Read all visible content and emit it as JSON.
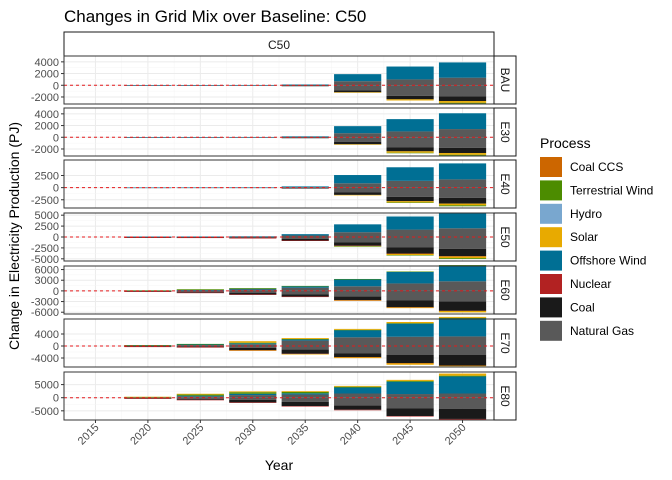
{
  "chart_data": {
    "type": "bar",
    "stacked": true,
    "title": "Changes in Grid Mix over Baseline: C50",
    "xlabel": "Year",
    "ylabel": "Change in Electricity Production (PJ)",
    "column_facet": "C50",
    "x": [
      "2015",
      "2020",
      "2025",
      "2030",
      "2035",
      "2040",
      "2045",
      "2050"
    ],
    "legend_title": "Process",
    "legend_position": "right",
    "baseline_line_color": "#e41a1c",
    "processes": [
      {
        "name": "Coal CCS",
        "color": "#cc6600"
      },
      {
        "name": "Terrestrial Wind",
        "color": "#4c8c00"
      },
      {
        "name": "Hydro",
        "color": "#79a7cf"
      },
      {
        "name": "Solar",
        "color": "#e8aa00"
      },
      {
        "name": "Offshore Wind",
        "color": "#006f94"
      },
      {
        "name": "Nuclear",
        "color": "#b22222"
      },
      {
        "name": "Coal",
        "color": "#1a1a1a"
      },
      {
        "name": "Natural Gas",
        "color": "#595959"
      }
    ],
    "panels": [
      {
        "label": "BAU",
        "ylim": [
          -3200,
          5000
        ],
        "yticks": [
          -2000,
          0,
          2000,
          4000
        ],
        "series": {
          "Natural Gas": [
            0,
            -30,
            -30,
            -50,
            -80,
            -900,
            -1800,
            -1900
          ],
          "Coal": [
            0,
            0,
            0,
            0,
            -40,
            -300,
            -600,
            -800
          ],
          "Nuclear": [
            0,
            0,
            0,
            0,
            0,
            0,
            0,
            0
          ],
          "Solar": [
            0,
            0,
            0,
            0,
            0,
            -50,
            -200,
            -300
          ],
          "Terrestrial Wind": [
            0,
            0,
            0,
            0,
            0,
            0,
            0,
            -100
          ],
          "Offshore Wind": [
            0,
            30,
            30,
            50,
            80,
            1200,
            2200,
            2600
          ],
          "Hydro": [
            0,
            0,
            0,
            0,
            0,
            0,
            0,
            0
          ],
          "Coal CCS": [
            0,
            0,
            0,
            0,
            0,
            0,
            0,
            0
          ],
          "Natural Gas (pos)": [
            0,
            0,
            0,
            0,
            50,
            700,
            1000,
            1300
          ]
        }
      },
      {
        "label": "E30",
        "ylim": [
          -3200,
          5000
        ],
        "yticks": [
          -2000,
          0,
          2000,
          4000
        ],
        "series": {
          "Natural Gas": [
            0,
            -20,
            -30,
            -50,
            -80,
            -800,
            -1700,
            -1800
          ],
          "Coal": [
            0,
            0,
            0,
            0,
            -40,
            -400,
            -700,
            -900
          ],
          "Nuclear": [
            0,
            0,
            0,
            0,
            0,
            0,
            0,
            0
          ],
          "Solar": [
            0,
            0,
            0,
            0,
            0,
            -50,
            -250,
            -300
          ],
          "Terrestrial Wind": [
            0,
            0,
            0,
            0,
            0,
            0,
            -50,
            -100
          ],
          "Offshore Wind": [
            0,
            20,
            30,
            50,
            100,
            1200,
            2100,
            2700
          ],
          "Hydro": [
            0,
            0,
            0,
            0,
            0,
            0,
            0,
            0
          ],
          "Coal CCS": [
            0,
            0,
            0,
            0,
            0,
            0,
            0,
            0
          ],
          "Natural Gas (pos)": [
            0,
            0,
            0,
            0,
            60,
            700,
            1000,
            1400
          ]
        }
      },
      {
        "label": "E40",
        "ylim": [
          -4200,
          5700
        ],
        "yticks": [
          -2500,
          0,
          2500
        ],
        "series": {
          "Natural Gas": [
            0,
            -20,
            -30,
            -50,
            -100,
            -1000,
            -1900,
            -2100
          ],
          "Coal": [
            0,
            0,
            0,
            0,
            -50,
            -500,
            -900,
            -1200
          ],
          "Nuclear": [
            0,
            0,
            0,
            0,
            0,
            0,
            0,
            0
          ],
          "Solar": [
            0,
            0,
            0,
            0,
            0,
            -50,
            -250,
            -350
          ],
          "Terrestrial Wind": [
            0,
            0,
            0,
            0,
            0,
            0,
            -100,
            -200
          ],
          "Offshore Wind": [
            0,
            20,
            30,
            50,
            150,
            1700,
            2800,
            3300
          ],
          "Hydro": [
            0,
            0,
            0,
            0,
            0,
            0,
            0,
            0
          ],
          "Coal CCS": [
            0,
            0,
            0,
            0,
            0,
            0,
            0,
            0
          ],
          "Natural Gas (pos)": [
            0,
            0,
            0,
            0,
            100,
            900,
            1400,
            1700
          ]
        }
      },
      {
        "label": "E50",
        "ylim": [
          -5500,
          5500
        ],
        "yticks": [
          -5000,
          -2500,
          0,
          2500,
          5000
        ],
        "series": {
          "Natural Gas": [
            0,
            -80,
            -100,
            -150,
            -400,
            -1200,
            -2400,
            -2700
          ],
          "Coal": [
            0,
            -20,
            -30,
            -80,
            -400,
            -800,
            -1400,
            -1700
          ],
          "Nuclear": [
            0,
            -30,
            -30,
            -30,
            -50,
            -50,
            -50,
            -50
          ],
          "Solar": [
            0,
            0,
            0,
            0,
            0,
            -50,
            -300,
            -400
          ],
          "Terrestrial Wind": [
            0,
            0,
            0,
            0,
            0,
            -20,
            -100,
            -200
          ],
          "Offshore Wind": [
            0,
            50,
            50,
            80,
            300,
            1800,
            3000,
            3600
          ],
          "Hydro": [
            0,
            0,
            0,
            0,
            0,
            0,
            0,
            0
          ],
          "Coal CCS": [
            0,
            0,
            0,
            0,
            0,
            0,
            0,
            0
          ],
          "Natural Gas (pos)": [
            0,
            50,
            60,
            80,
            350,
            1100,
            1700,
            2000
          ]
        }
      },
      {
        "label": "E60",
        "ylim": [
          -6500,
          7000
        ],
        "yticks": [
          -6000,
          -3000,
          0,
          3000,
          6000
        ],
        "series": {
          "Natural Gas": [
            0,
            -100,
            -300,
            -600,
            -1000,
            -1600,
            -2700,
            -3000
          ],
          "Coal": [
            0,
            -50,
            -200,
            -400,
            -600,
            -1000,
            -1900,
            -2600
          ],
          "Nuclear": [
            0,
            -30,
            -50,
            -50,
            -50,
            -50,
            -50,
            -50
          ],
          "Solar": [
            0,
            0,
            0,
            0,
            0,
            -50,
            -200,
            -400
          ],
          "Terrestrial Wind": [
            0,
            50,
            200,
            200,
            100,
            50,
            50,
            50
          ],
          "Offshore Wind": [
            0,
            50,
            100,
            200,
            400,
            2000,
            3300,
            4500
          ],
          "Hydro": [
            0,
            0,
            0,
            0,
            0,
            0,
            0,
            0
          ],
          "Coal CCS": [
            0,
            0,
            0,
            0,
            0,
            0,
            0,
            0
          ],
          "Natural Gas (pos)": [
            0,
            50,
            150,
            400,
            900,
            1300,
            2100,
            2700
          ]
        }
      },
      {
        "label": "E70",
        "ylim": [
          -7000,
          9000
        ],
        "yticks": [
          -4000,
          0,
          4000
        ],
        "series": {
          "Natural Gas": [
            0,
            -150,
            -200,
            -600,
            -1200,
            -2400,
            -3000,
            -3000
          ],
          "Coal": [
            0,
            -50,
            -200,
            -800,
            -1400,
            -1300,
            -2700,
            -3500
          ],
          "Nuclear": [
            0,
            -50,
            -50,
            -50,
            -50,
            -50,
            -50,
            -50
          ],
          "Solar": [
            0,
            0,
            0,
            -100,
            -100,
            -300,
            -500,
            -200
          ],
          "Terrestrial Wind": [
            0,
            50,
            200,
            200,
            150,
            100,
            100,
            100
          ],
          "Offshore Wind": [
            0,
            100,
            200,
            300,
            400,
            2400,
            4400,
            6100
          ],
          "Hydro": [
            0,
            0,
            0,
            0,
            0,
            0,
            0,
            0
          ],
          "Coal CCS": [
            0,
            0,
            0,
            0,
            0,
            0,
            0,
            0
          ],
          "Natural Gas (pos)": [
            0,
            150,
            300,
            600,
            1800,
            2900,
            3100,
            3200
          ],
          "Solar (pos)": [
            0,
            0,
            0,
            500,
            300,
            300,
            400,
            300
          ]
        }
      },
      {
        "label": "E80",
        "ylim": [
          -8500,
          9800
        ],
        "yticks": [
          -5000,
          0,
          5000
        ],
        "series": {
          "Natural Gas": [
            0,
            -200,
            -400,
            -800,
            -1600,
            -3000,
            -4100,
            -4200
          ],
          "Coal": [
            0,
            -50,
            -400,
            -1000,
            -1600,
            -1600,
            -2900,
            -3900
          ],
          "Nuclear": [
            0,
            -50,
            -50,
            -50,
            -50,
            -50,
            -50,
            -50
          ],
          "Solar": [
            0,
            0,
            0,
            0,
            0,
            0,
            0,
            0
          ],
          "Terrestrial Wind": [
            0,
            50,
            400,
            600,
            500,
            300,
            300,
            300
          ],
          "Offshore Wind": [
            0,
            100,
            300,
            500,
            500,
            2300,
            4700,
            6500
          ],
          "Hydro": [
            0,
            0,
            0,
            0,
            0,
            0,
            0,
            0
          ],
          "Coal CCS": [
            0,
            0,
            0,
            0,
            0,
            0,
            0,
            0
          ],
          "Natural Gas (pos)": [
            0,
            150,
            500,
            1000,
            1200,
            1600,
            1400,
            1600
          ],
          "Solar (pos)": [
            0,
            50,
            300,
            300,
            300,
            300,
            400,
            800
          ]
        }
      }
    ]
  }
}
